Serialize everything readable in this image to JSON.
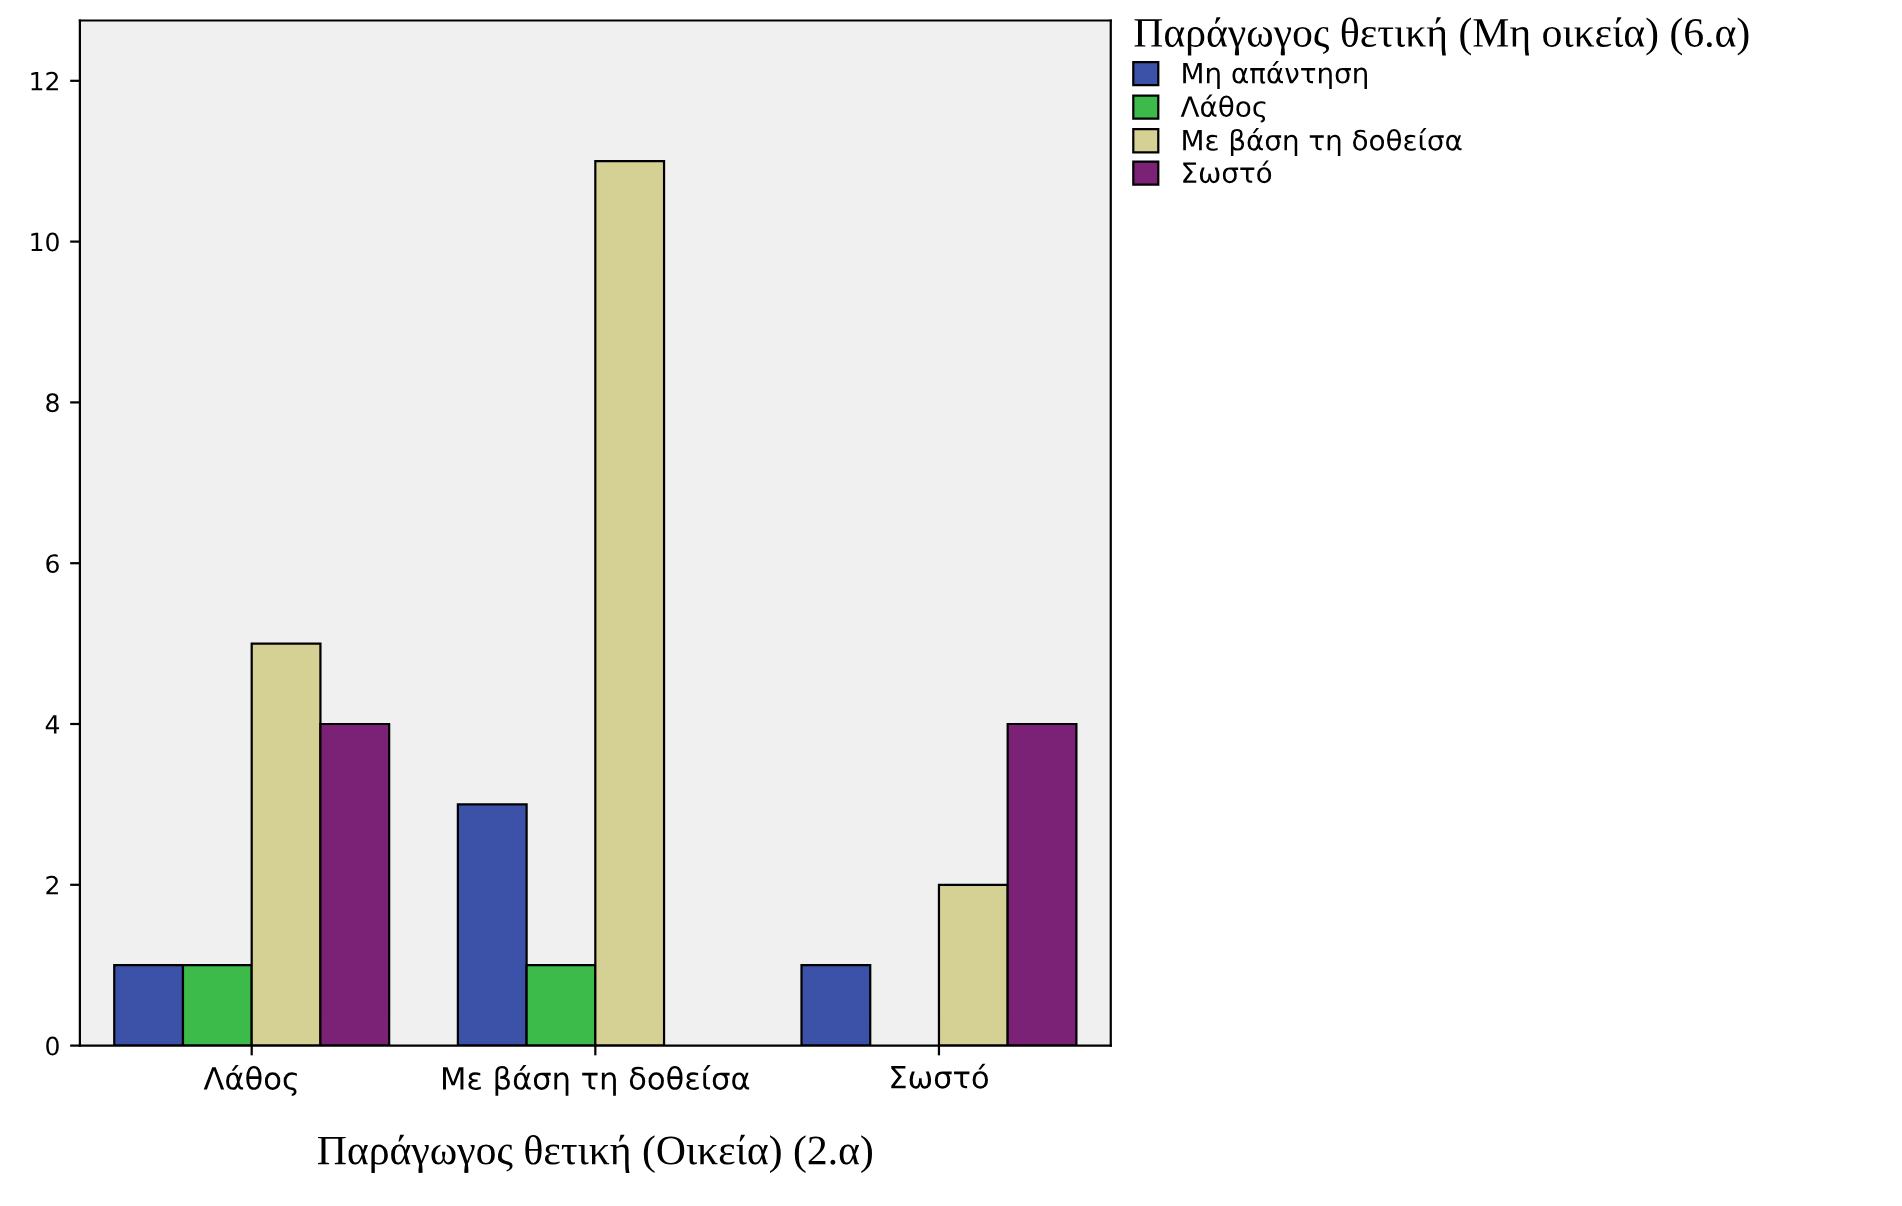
{
  "chart_data": {
    "type": "bar",
    "xlabel": "Παράγωγος θετική (Οικεία) (2.α)",
    "legend_title": "Παράγωγος θετική (Μη οικεία) (6.α)",
    "categories": [
      "Λάθος",
      "Με βάση τη δοθείσα",
      "Σωστό"
    ],
    "series": [
      {
        "name": "Μη απάντηση",
        "color": "#3c52a8",
        "values": [
          1,
          3,
          1
        ]
      },
      {
        "name": "Λάθος",
        "color": "#3cba4a",
        "values": [
          1,
          1,
          null
        ]
      },
      {
        "name": "Με βάση τη δοθείσα",
        "color": "#d5d194",
        "values": [
          5,
          11,
          2
        ]
      },
      {
        "name": "Σωστό",
        "color": "#7b2277",
        "values": [
          4,
          null,
          4
        ]
      }
    ],
    "ylim": [
      0,
      12.75
    ],
    "yticks": [
      0,
      2,
      4,
      6,
      8,
      10,
      12
    ],
    "grid": false,
    "legend": "top right"
  }
}
